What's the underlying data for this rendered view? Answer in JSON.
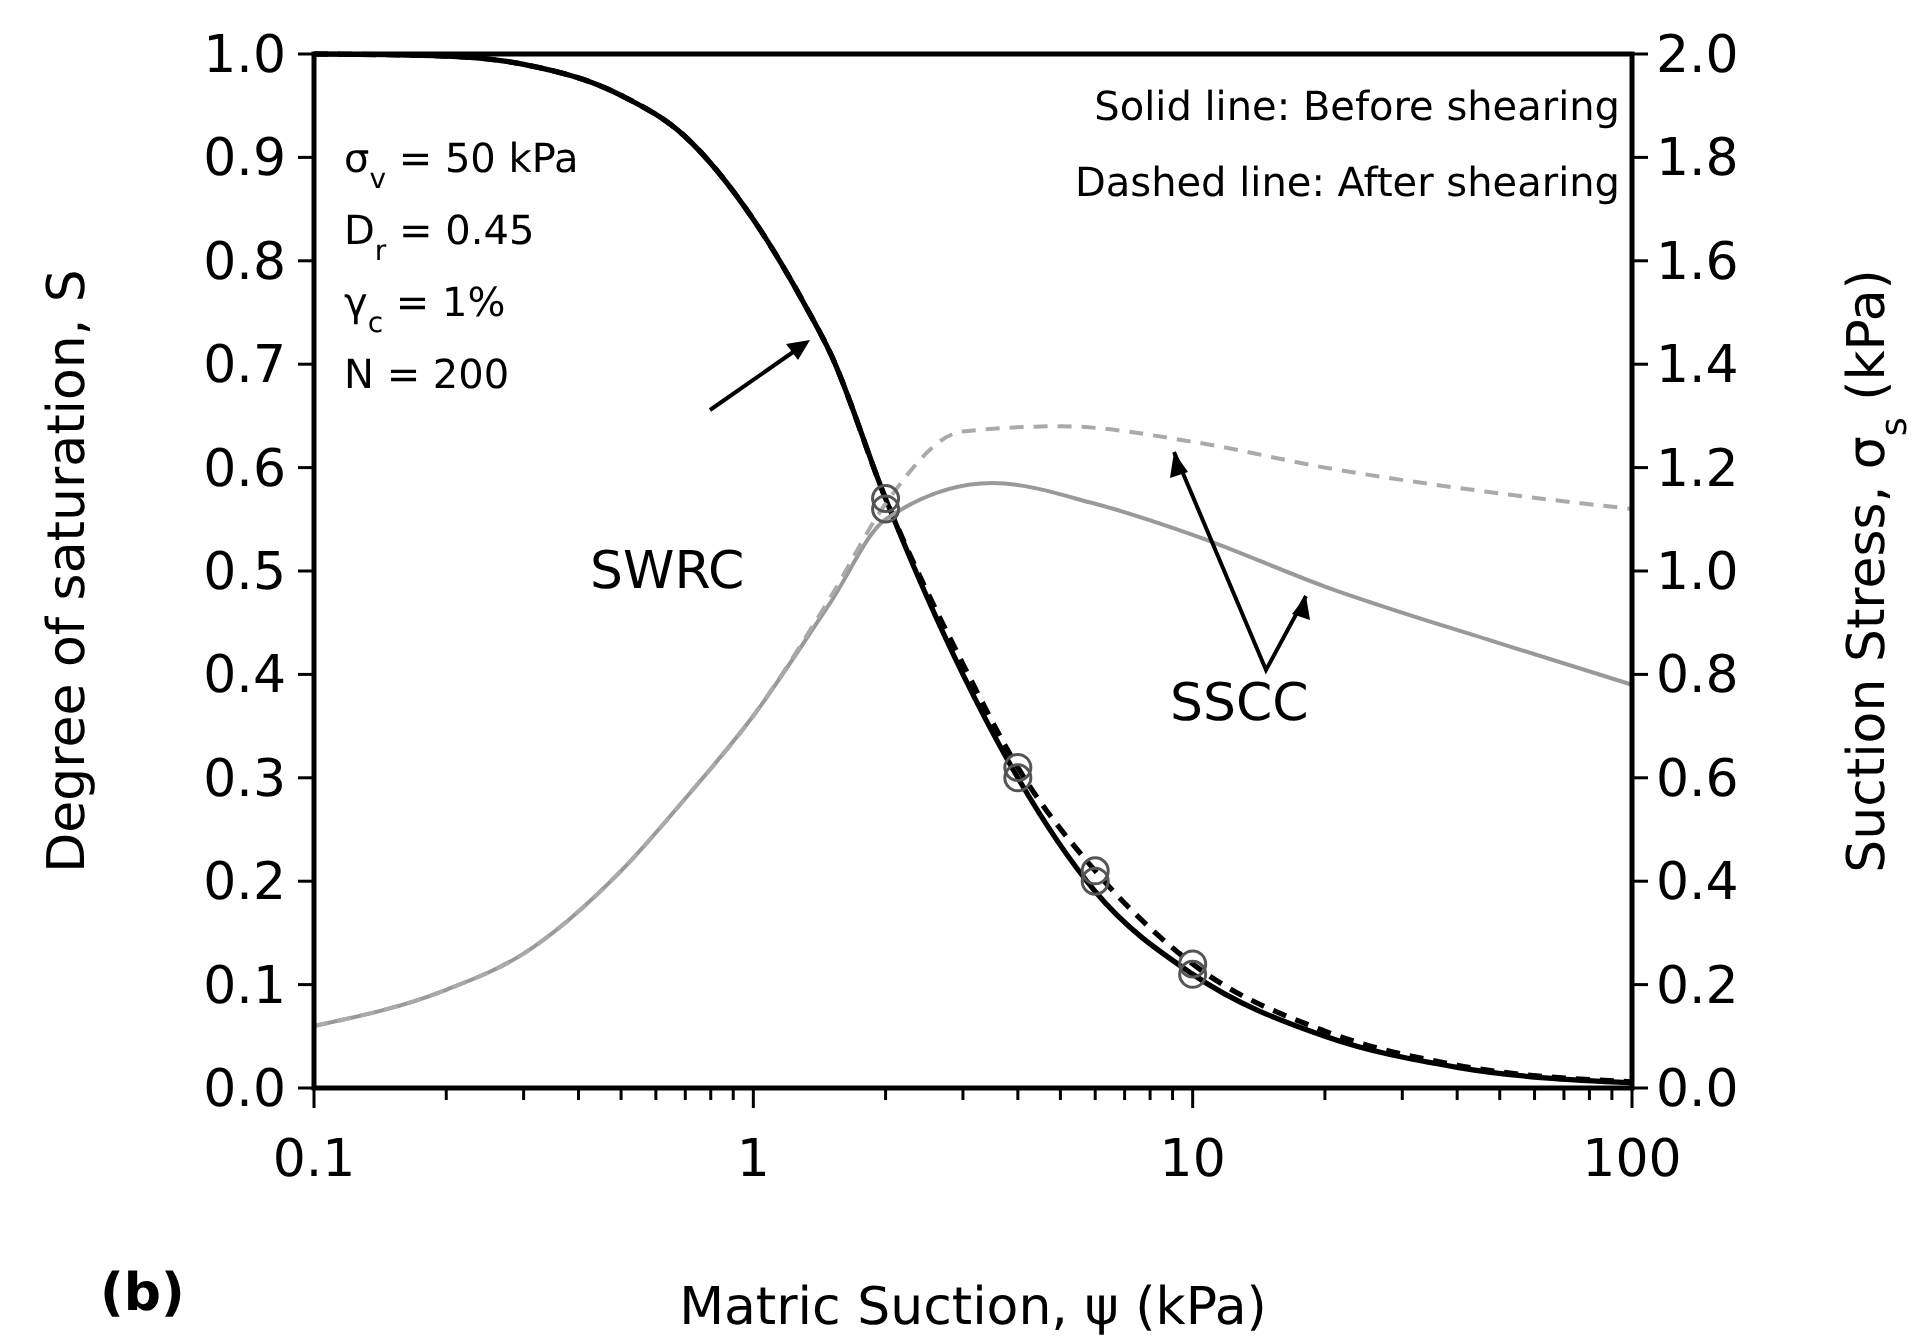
{
  "chart_data": {
    "type": "line",
    "xlabel": "Matric Suction, ψ (kPa)",
    "ylabel": "Degree of saturation, S",
    "y2label": "Suction Stress, σ$_{s}$ (kPa)",
    "log": "x",
    "grid": false,
    "xlim": [
      0.1,
      100
    ],
    "xticks": [
      0.1,
      {
        "value": 0.2,
        "label": null
      },
      {
        "value": 0.3,
        "label": null
      },
      {
        "value": 0.4,
        "label": null
      },
      {
        "value": 0.5,
        "label": null
      },
      {
        "value": 0.6,
        "label": null
      },
      {
        "value": 0.7,
        "label": null
      },
      {
        "value": 0.8,
        "label": null
      },
      {
        "value": 0.9,
        "label": null
      },
      1,
      {
        "value": 2,
        "label": null
      },
      {
        "value": 3,
        "label": null
      },
      {
        "value": 4,
        "label": null
      },
      {
        "value": 5,
        "label": null
      },
      {
        "value": 6,
        "label": null
      },
      {
        "value": 7,
        "label": null
      },
      {
        "value": 8,
        "label": null
      },
      {
        "value": 9,
        "label": null
      },
      10,
      {
        "value": 20,
        "label": null
      },
      {
        "value": 30,
        "label": null
      },
      {
        "value": 40,
        "label": null
      },
      {
        "value": 50,
        "label": null
      },
      {
        "value": 60,
        "label": null
      },
      {
        "value": 70,
        "label": null
      },
      {
        "value": 80,
        "label": null
      },
      {
        "value": 90,
        "label": null
      },
      100
    ],
    "ylim": [
      0,
      1
    ],
    "yticks": [
      {
        "value": 0,
        "label": "0.0"
      },
      0.1,
      0.2,
      0.3,
      0.4,
      0.5,
      0.6,
      0.7,
      0.8,
      0.9,
      {
        "value": 1,
        "label": "1.0"
      }
    ],
    "y2lim": [
      0,
      2
    ],
    "y2ticks": [
      {
        "value": 0,
        "label": "0.0"
      },
      0.2,
      0.4,
      0.6,
      0.8,
      {
        "value": 1,
        "label": "1.0"
      },
      1.2,
      1.4,
      1.6,
      1.8,
      {
        "value": 2,
        "label": "2.0"
      }
    ],
    "x": [
      0.1,
      0.2,
      0.3,
      0.5,
      0.7,
      1,
      1.3,
      1.5,
      2,
      3,
      4,
      6,
      10,
      20,
      40,
      100
    ],
    "series": [
      {
        "color": "#000000",
        "line_style": "solid",
        "values": [
          1.0,
          0.998,
          0.99,
          0.96,
          0.92,
          0.84,
          0.76,
          0.71,
          0.57,
          0.4,
          0.3,
          0.19,
          0.11,
          0.05,
          0.02,
          0.005
        ]
      },
      {
        "color": "#000000",
        "line_style": "dashed",
        "values": [
          1.0,
          0.998,
          0.99,
          0.96,
          0.92,
          0.84,
          0.76,
          0.71,
          0.57,
          0.41,
          0.31,
          0.21,
          0.12,
          0.055,
          0.022,
          0.006
        ]
      },
      {
        "axis": "y2",
        "color": "#999999",
        "line_style": "solid",
        "x": [
          0.1,
          0.2,
          0.3,
          0.5,
          0.7,
          1,
          1.5,
          2,
          3.5,
          6,
          10,
          20,
          50,
          100
        ],
        "values": [
          0.12,
          0.19,
          0.26,
          0.42,
          0.56,
          0.72,
          0.94,
          1.1,
          1.17,
          1.13,
          1.07,
          0.97,
          0.86,
          0.78
        ]
      },
      {
        "axis": "y2",
        "color": "#aaaaaa",
        "line_style": "dashed",
        "x": [
          0.1,
          0.2,
          0.3,
          0.5,
          0.7,
          1,
          1.5,
          2,
          3,
          5,
          10,
          20,
          50,
          100
        ],
        "values": [
          0.12,
          0.19,
          0.26,
          0.42,
          0.56,
          0.72,
          0.95,
          1.13,
          1.27,
          1.28,
          1.25,
          1.2,
          1.15,
          1.12
        ]
      },
      {
        "type": "scatter",
        "color": "#555555",
        "marker": "circle",
        "x": [
          2,
          2,
          4,
          4,
          6,
          6,
          10,
          10
        ],
        "values": [
          0.56,
          0.57,
          0.3,
          0.31,
          0.2,
          0.21,
          0.11,
          0.12
        ]
      }
    ],
    "annotations": [
      "σ$_{v}$ = 50 kPa",
      "D$_{r}$ = 0.45",
      "γ$_{c}$ = 1%",
      "N = 200",
      "Solid line: Before shearing",
      "Dashed line: After shearing",
      "SWRC",
      "SSCC",
      "(b)"
    ]
  }
}
